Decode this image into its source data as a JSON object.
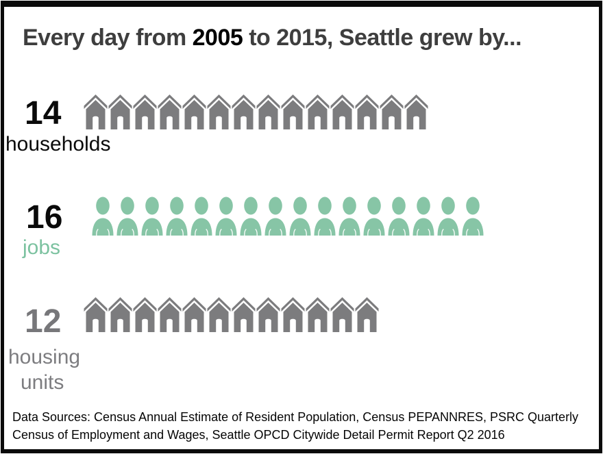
{
  "title": {
    "part1": "Every day from ",
    "highlight": "2005",
    "part2": " to 2015, Seattle grew by..."
  },
  "rows": [
    {
      "id": "households",
      "value": "14",
      "label": "households",
      "icon": "house-icon",
      "count": 14,
      "icon_color": "#7c7c7e"
    },
    {
      "id": "jobs",
      "value": "16",
      "label": "jobs",
      "icon": "person-icon",
      "count": 16,
      "icon_color": "#87c5a6"
    },
    {
      "id": "housing-units",
      "value": "12",
      "label_line1": "housing",
      "label_line2": "units",
      "icon": "house-icon",
      "count": 12,
      "icon_color": "#7c7c7e"
    }
  ],
  "footer": {
    "line1": "Data Sources: Census Annual Estimate of Resident Population, Census PEPANNRES, PSRC Quarterly",
    "line2": "Census of Employment and Wages, Seattle OPCD Citywide Detail Permit Report Q2 2016"
  },
  "colors": {
    "title_gray": "#3e3e3e",
    "highlight_black": "#000000",
    "house_gray": "#7c7c7e",
    "person_teal": "#87c5a6",
    "jobs_label_teal": "#7cc2a0",
    "housing_label_gray": "#7d7d80"
  },
  "chart_data": {
    "type": "bar",
    "style": "pictogram",
    "title": "Every day from 2005 to 2015, Seattle grew by...",
    "categories": [
      "households",
      "jobs",
      "housing units"
    ],
    "values": [
      14,
      16,
      12
    ],
    "units_per_icon": 1,
    "icon_shapes": [
      "house",
      "person",
      "house"
    ],
    "series_colors": [
      "#7c7c7e",
      "#87c5a6",
      "#7c7c7e"
    ],
    "grid": false,
    "legend_position": "none",
    "annotation": "Data Sources: Census Annual Estimate of Resident Population, Census PEPANNRES, PSRC Quarterly Census of Employment and Wages, Seattle OPCD Citywide Detail Permit Report Q2 2016"
  }
}
